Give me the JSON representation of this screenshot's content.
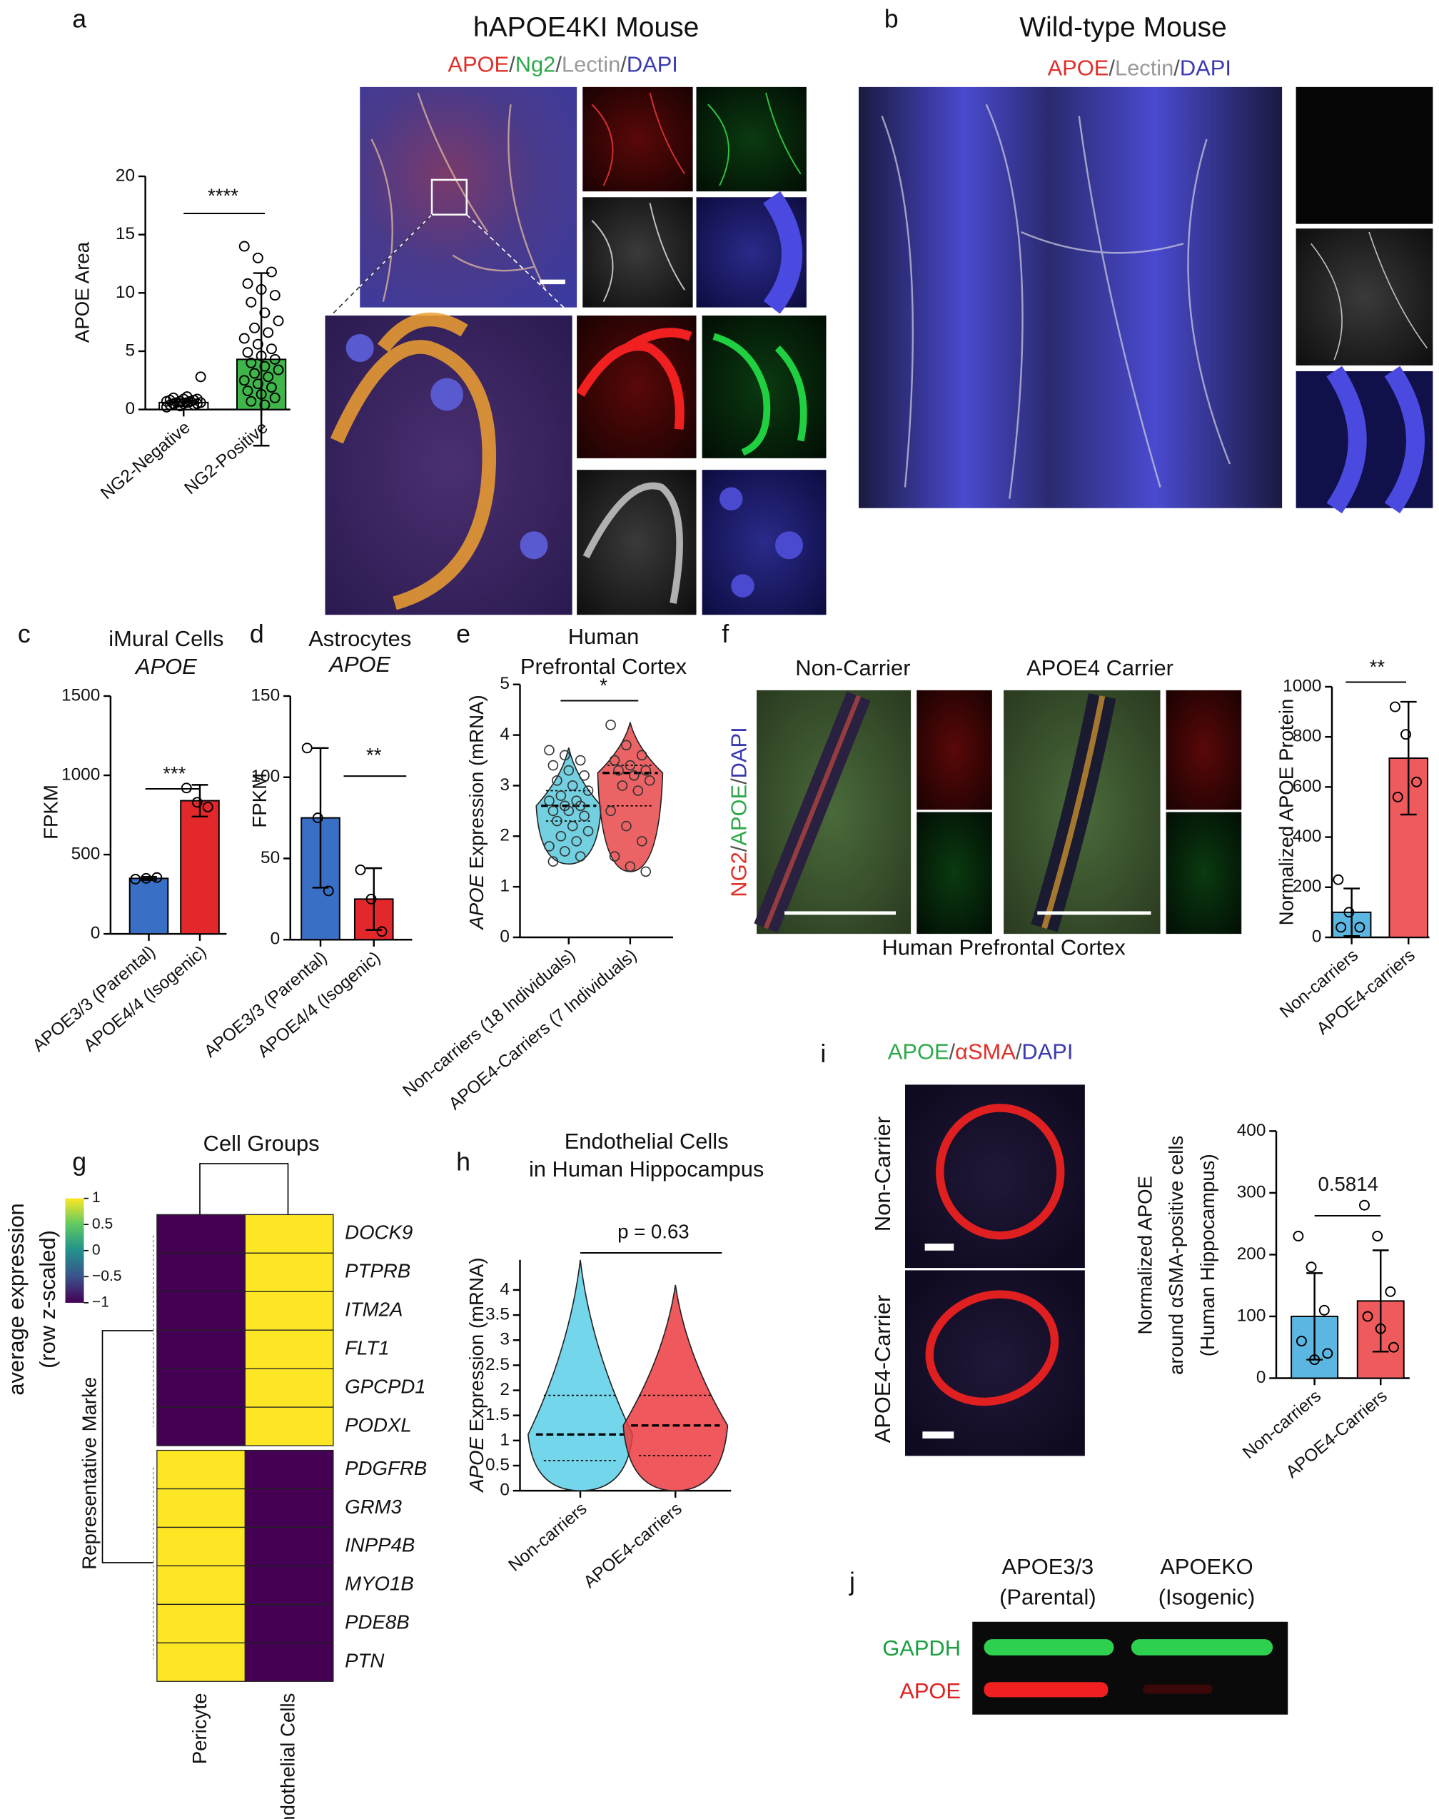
{
  "chart_data": [
    {
      "type": "bar",
      "ylabel": "APOE Area",
      "categories": [
        "NG2-Negative",
        "NG2-Positive"
      ],
      "values": [
        0.6,
        4.3
      ],
      "errors": [
        0.3,
        7.4
      ],
      "colors": [
        "#ffffff",
        "#3fb54a"
      ],
      "points": [
        [
          0.2,
          0.3,
          0.4,
          0.4,
          0.5,
          0.5,
          0.5,
          0.6,
          0.6,
          0.6,
          0.7,
          0.7,
          0.7,
          0.8,
          0.8,
          0.9,
          0.9,
          1,
          1.1,
          2.8
        ],
        [
          14,
          13,
          11.8,
          10.8,
          10.3,
          9.8,
          9.2,
          8.3,
          7.6,
          7,
          6.6,
          6.1,
          5.6,
          5.2,
          4.9,
          4.6,
          4.3,
          4,
          3.7,
          3.4,
          3.1,
          2.8,
          2.5,
          2.2,
          1.9,
          1.6,
          1.3,
          1,
          0.7,
          0.4
        ]
      ],
      "ylim": [
        0,
        20
      ],
      "yticks": [
        0,
        5,
        10,
        15,
        20
      ],
      "annotation": "****"
    },
    {
      "type": "bar",
      "title": "iMural Cells",
      "subtitle": "APOE",
      "ylabel": "FPKM",
      "categories": [
        "APOE3/3 (Parental)",
        "APOE4/4 (Isogenic)"
      ],
      "values": [
        350,
        840
      ],
      "errors": [
        10,
        100
      ],
      "colors": [
        "#3a6fc6",
        "#e3282b"
      ],
      "points": [
        [
          345,
          350,
          355
        ],
        [
          920,
          830,
          800
        ]
      ],
      "ylim": [
        0,
        1500
      ],
      "yticks": [
        0,
        500,
        1000,
        1500
      ],
      "annotation": "***"
    },
    {
      "type": "bar",
      "title": "Astrocytes",
      "subtitle": "APOE",
      "ylabel": "FPKM",
      "categories": [
        "APOE3/3 (Parental)",
        "APOE4/4 (Isogenic)"
      ],
      "values": [
        75,
        25
      ],
      "errors": [
        43,
        19
      ],
      "colors": [
        "#3a6fc6",
        "#e3282b"
      ],
      "points": [
        [
          118,
          75,
          30
        ],
        [
          43,
          25,
          5
        ]
      ],
      "ylim": [
        0,
        150
      ],
      "yticks": [
        0,
        50,
        100,
        150
      ],
      "annotation": "**"
    },
    {
      "type": "violin",
      "title": "Human",
      "subtitle": "Prefrontal Cortex",
      "ylabel_gene": "APOE",
      "ylabel": " Expression (mRNA)",
      "categories": [
        "Non-carriers (18 Individuals)",
        "APOE4-Carriers (7 Individuals)"
      ],
      "values": [
        2.6,
        3.25
      ],
      "min": [
        1.45,
        1.3
      ],
      "max": [
        3.75,
        4.25
      ],
      "quartiles": [
        [
          2.3,
          2.9
        ],
        [
          2.6,
          3.4
        ]
      ],
      "colors": [
        "#5ac8dc",
        "#e8484a"
      ],
      "points": [
        [
          3.7,
          3.6,
          3.5,
          3.4,
          3.3,
          3.2,
          3.1,
          3,
          2.9,
          2.8,
          2.7,
          2.7,
          2.6,
          2.6,
          2.5,
          2.5,
          2.4,
          2.3,
          2.2,
          2.1,
          2,
          1.9,
          1.8,
          1.7,
          1.6,
          1.5
        ],
        [
          4.2,
          3.8,
          3.6,
          3.5,
          3.4,
          3.3,
          3.3,
          3.2,
          3.1,
          3,
          2.9,
          2.5,
          2.2,
          1.9,
          1.6,
          1.4,
          1.3
        ]
      ],
      "ylim": [
        0,
        5
      ],
      "yticks": [
        0,
        1,
        2,
        3,
        4,
        5
      ],
      "annotation": "*"
    },
    {
      "type": "bar",
      "ylabel": "Normalized APOE Protein",
      "categories": [
        "Non-carriers",
        "APOE4-carriers"
      ],
      "values": [
        100,
        715
      ],
      "errors": [
        95,
        225
      ],
      "colors": [
        "#5cb6e2",
        "#ef5b5c"
      ],
      "points": [
        [
          230,
          100,
          40,
          40
        ],
        [
          920,
          810,
          620,
          560
        ]
      ],
      "ylim": [
        0,
        1000
      ],
      "yticks": [
        0,
        200,
        400,
        600,
        800,
        1000
      ],
      "annotation": "**"
    },
    {
      "type": "heatmap",
      "title": "Cell Groups",
      "legend_title": [
        "average expression",
        "(row z-scaled)"
      ],
      "ylabel": "Representative Marke",
      "categories": [
        "Pericyte",
        "Endothelial Cells"
      ],
      "genes": [
        "DOCK9",
        "PTPRB",
        "ITM2A",
        "FLT1",
        "GPCPD1",
        "PODXL",
        "PDGFRB",
        "GRM3",
        "INPP4B",
        "MYO1B",
        "PDE8B",
        "PTN"
      ],
      "values": [
        [
          -1,
          1
        ],
        [
          -1,
          1
        ],
        [
          -1,
          1
        ],
        [
          -1,
          1
        ],
        [
          -1,
          1
        ],
        [
          -1,
          1
        ],
        [
          1,
          -1
        ],
        [
          1,
          -1
        ],
        [
          1,
          -1
        ],
        [
          1,
          -1
        ],
        [
          1,
          -1
        ],
        [
          1,
          -1
        ]
      ],
      "zlim": [
        -1,
        1
      ],
      "zticks": [
        1,
        0.5,
        0,
        {
          "value": -0.5,
          "label": "−0.5"
        },
        {
          "value": -1,
          "label": "−1"
        }
      ]
    },
    {
      "type": "violin",
      "title": "Endothelial Cells",
      "subtitle": "in Human Hippocampus",
      "ylabel_gene": "APOE",
      "ylabel": " Expression (mRNA)",
      "categories": [
        "Non-carriers",
        "APOE4-carriers"
      ],
      "values": [
        1.12,
        1.3
      ],
      "min": [
        0,
        0
      ],
      "max": [
        4.6,
        4.1
      ],
      "quartiles": [
        [
          0.6,
          1.9
        ],
        [
          0.7,
          1.9
        ]
      ],
      "colors": [
        "#5ccfe6",
        "#ec3b3f"
      ],
      "ylim": [
        0,
        4.6
      ],
      "yticks": [
        0,
        0.5,
        1,
        1.5,
        2,
        2.5,
        3,
        3.5,
        4
      ],
      "annotation": "p = 0.63"
    },
    {
      "type": "bar",
      "ylabel": [
        "Normalized APOE",
        "around  αSMA-positive cells",
        "(Human Hippocampus)"
      ],
      "categories": [
        "Non-carriers",
        "APOE4-Carriers"
      ],
      "values": [
        100,
        125
      ],
      "errors": [
        70,
        82
      ],
      "colors": [
        "#5cb6e2",
        "#ef5b5c"
      ],
      "points": [
        [
          230,
          180,
          110,
          60,
          30,
          40
        ],
        [
          280,
          230,
          140,
          100,
          80,
          50
        ]
      ],
      "ylim": [
        0,
        400
      ],
      "yticks": [
        0,
        100,
        200,
        300,
        400
      ],
      "annotation": "0.5814"
    }
  ],
  "labels": {
    "panel_letters": [
      "a",
      "b",
      "c",
      "d",
      "e",
      "f",
      "g",
      "h",
      "i",
      "j"
    ],
    "a_title": "hAPOE4KI Mouse",
    "a_stain": [
      {
        "text": "APOE",
        "color": "#e0302a"
      },
      {
        "text": "/",
        "color": "#555555"
      },
      {
        "text": "Ng2",
        "color": "#2ea84a"
      },
      {
        "text": "/",
        "color": "#555555"
      },
      {
        "text": "Lectin",
        "color": "#9a9a9a"
      },
      {
        "text": "/",
        "color": "#555555"
      },
      {
        "text": "DAPI",
        "color": "#3a3ab0"
      }
    ],
    "b_title": "Wild-type Mouse",
    "b_stain": [
      {
        "text": "APOE",
        "color": "#e0302a"
      },
      {
        "text": "/",
        "color": "#555555"
      },
      {
        "text": "Lectin",
        "color": "#9a9a9a"
      },
      {
        "text": "/",
        "color": "#555555"
      },
      {
        "text": "DAPI",
        "color": "#3a3ab0"
      }
    ],
    "f_left": "Non-Carrier",
    "f_right": "APOE4 Carrier",
    "f_stain": [
      {
        "text": "NG2",
        "color": "#e0302a"
      },
      {
        "text": "/",
        "color": "#555555"
      },
      {
        "text": "APOE",
        "color": "#2ea84a"
      },
      {
        "text": "/",
        "color": "#555555"
      },
      {
        "text": "DAPI",
        "color": "#3a3ab0"
      }
    ],
    "f_caption": "Human Prefrontal Cortex",
    "i_stain": [
      {
        "text": "APOE",
        "color": "#2ea84a"
      },
      {
        "text": "/",
        "color": "#555555"
      },
      {
        "text": "αSMA",
        "color": "#e0302a"
      },
      {
        "text": "/",
        "color": "#555555"
      },
      {
        "text": "DAPI",
        "color": "#3a3ab0"
      }
    ],
    "i_top": "Non-Carrier",
    "i_bottom": "APOE4-Carrier",
    "j_left": [
      "APOE3/3",
      "(Parental)"
    ],
    "j_right": [
      "APOEKO",
      "(Isogenic)"
    ],
    "j_gapdh": "GAPDH",
    "j_apoe": "APOE"
  }
}
